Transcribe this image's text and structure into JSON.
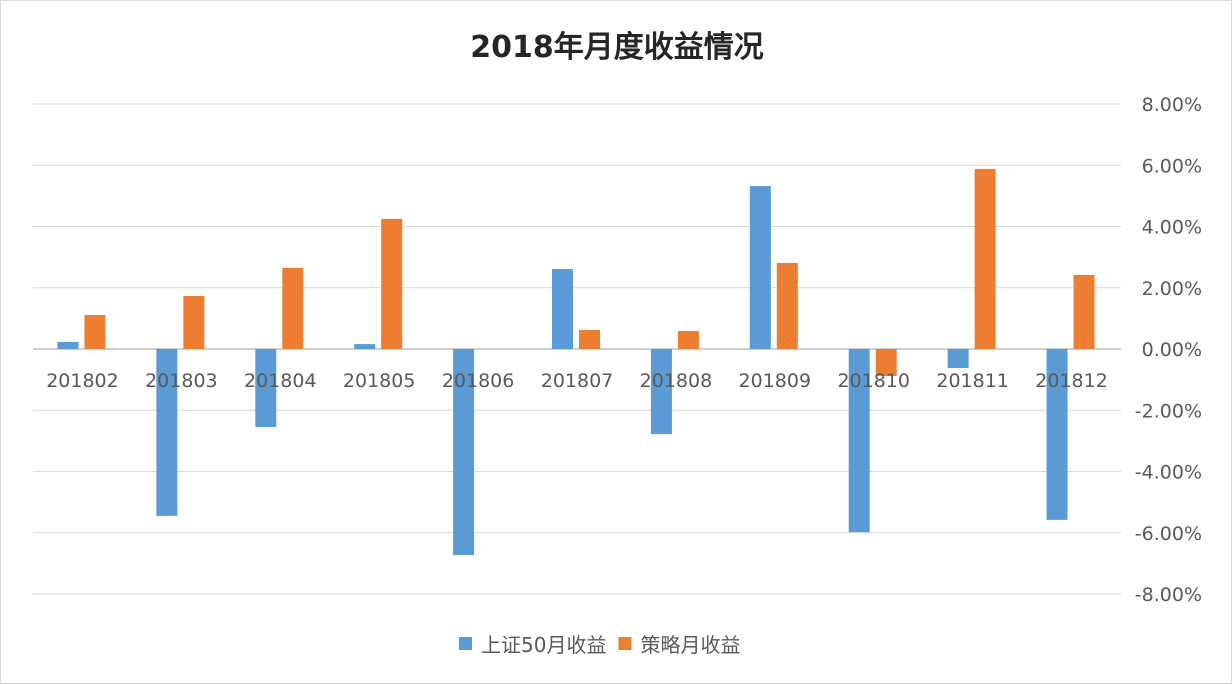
{
  "chart_data": {
    "type": "bar",
    "title": "2018年月度收益情况",
    "categories": [
      "201802",
      "201803",
      "201804",
      "201805",
      "201806",
      "201807",
      "201808",
      "201809",
      "201810",
      "201811",
      "201812"
    ],
    "series": [
      {
        "name": "上证50月收益",
        "color": "#5b9bd5",
        "values": [
          0.23,
          -5.45,
          -2.55,
          0.16,
          -6.73,
          2.61,
          -2.78,
          5.32,
          -5.98,
          -0.62,
          -5.58
        ]
      },
      {
        "name": "策略月收益",
        "color": "#ed7d31",
        "values": [
          1.11,
          1.73,
          2.65,
          4.25,
          0.0,
          0.62,
          0.59,
          2.81,
          -0.88,
          5.88,
          2.42
        ]
      }
    ],
    "ylim": [
      -8,
      8
    ],
    "yticks": [
      "8.00%",
      "6.00%",
      "4.00%",
      "2.00%",
      "0.00%",
      "-2.00%",
      "-4.00%",
      "-6.00%",
      "-8.00%"
    ],
    "ytick_values": [
      8,
      6,
      4,
      2,
      0,
      -2,
      -4,
      -6,
      -8
    ],
    "y_axis_side": "right",
    "grid": true,
    "legend": "bottom-center",
    "xlabel": "",
    "ylabel": ""
  }
}
